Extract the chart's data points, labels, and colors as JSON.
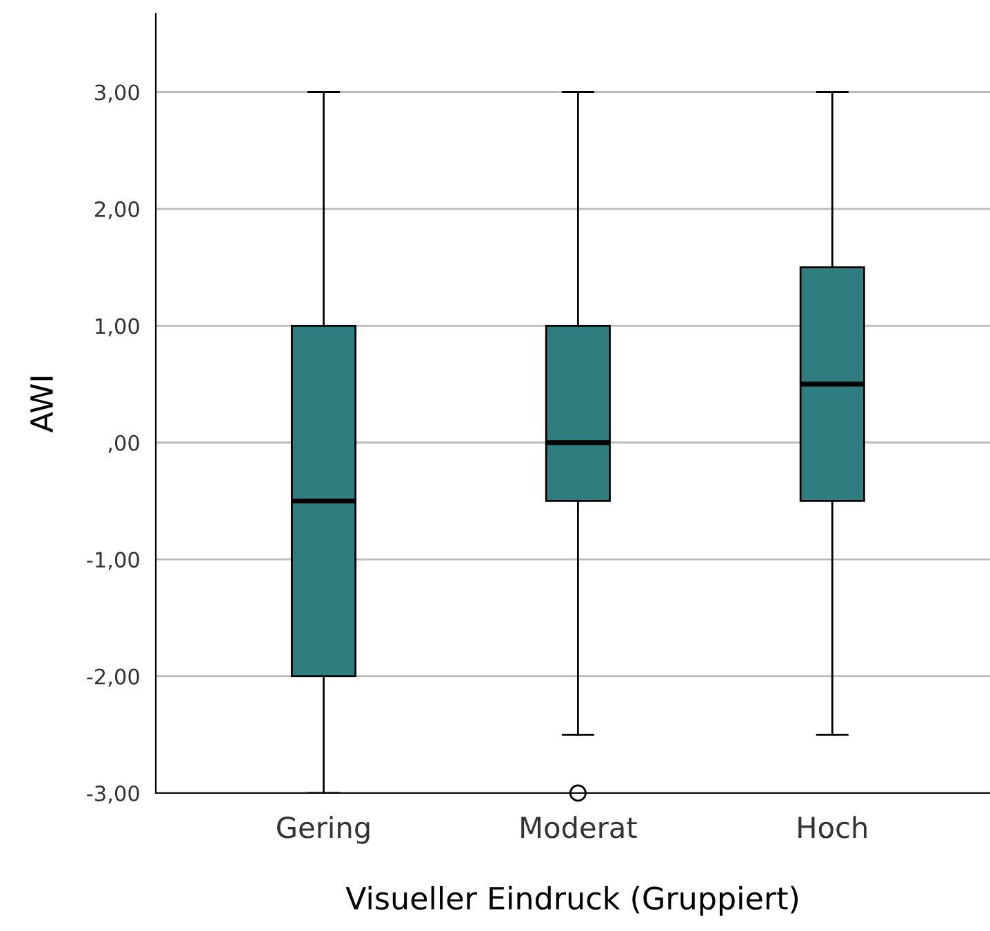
{
  "chart_data": {
    "type": "box",
    "xlabel": "Visueller Eindruck (Gruppiert)",
    "ylabel": "AWI",
    "categories": [
      "Gering",
      "Moderat",
      "Hoch"
    ],
    "boxes": [
      {
        "low": -3,
        "q1": -2,
        "median": -0.5,
        "q3": 1,
        "high": 3
      },
      {
        "low": -2.5,
        "q1": -0.5,
        "median": 0,
        "q3": 1,
        "high": 3,
        "outliers": [
          -3
        ]
      },
      {
        "low": -2.5,
        "q1": -0.5,
        "median": 0.5,
        "q3": 1.5,
        "high": 3
      }
    ],
    "color": "#2e7d7f",
    "ylim": [
      -3,
      3.67
    ],
    "yticks": [
      {
        "value": -3,
        "label": "-3,00"
      },
      {
        "value": -2,
        "label": "-2,00"
      },
      {
        "value": -1,
        "label": "-1,00"
      },
      {
        "value": 0,
        "label": ",00"
      },
      {
        "value": 1,
        "label": "1,00"
      },
      {
        "value": 2,
        "label": "2,00"
      },
      {
        "value": 3,
        "label": "3,00"
      }
    ],
    "grid": "y"
  }
}
